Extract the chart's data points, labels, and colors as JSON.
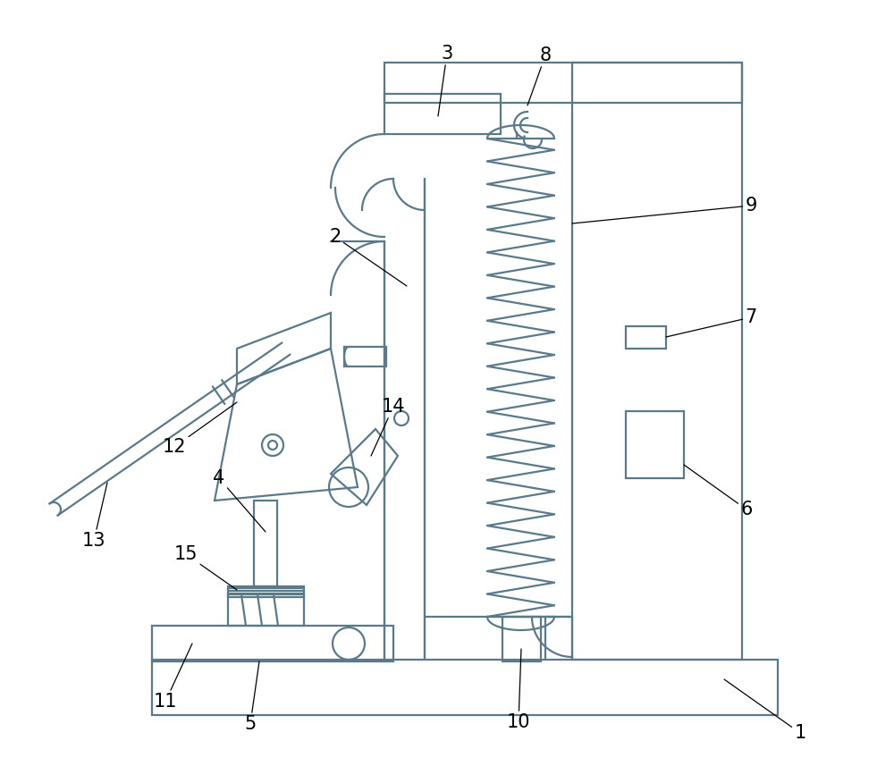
{
  "background_color": "#ffffff",
  "line_color": "#5a7a8a",
  "figsize": [
    10.0,
    8.76
  ],
  "dpi": 100,
  "lw": 1.6
}
